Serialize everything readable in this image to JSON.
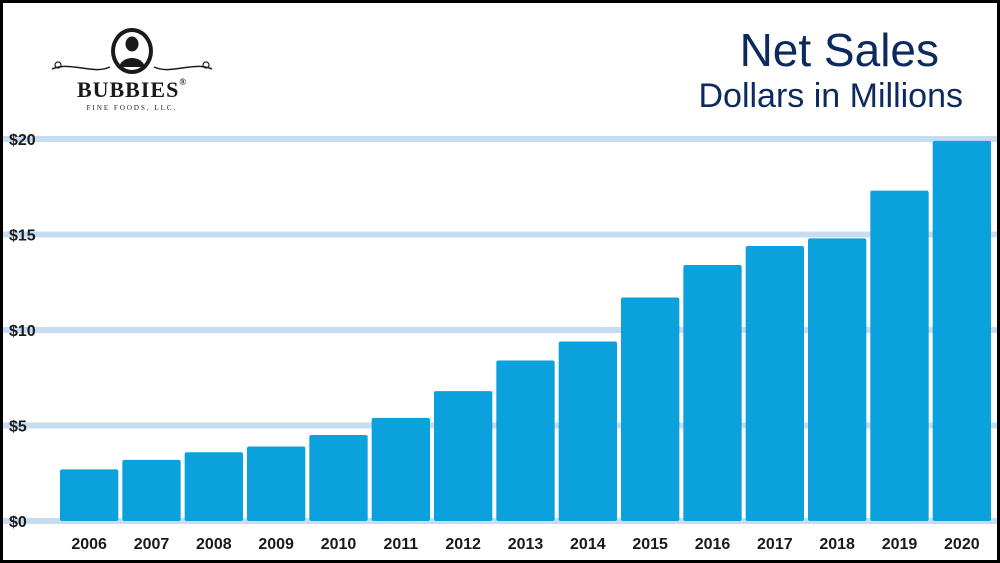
{
  "logo": {
    "wordmark": "BUBBIES",
    "registered": "®",
    "tagline": "FINE FOODS, LLC."
  },
  "colors": {
    "bar": "#0aa1dd",
    "gridline": "#c6dcf0",
    "title": "#0c2a5e",
    "axis_text": "#1a1a1a",
    "border": "#000000"
  },
  "chart_data": {
    "type": "bar",
    "title": "Net Sales",
    "subtitle": "Dollars in Millions",
    "xlabel": "",
    "ylabel": "",
    "categories": [
      "2006",
      "2007",
      "2008",
      "2009",
      "2010",
      "2011",
      "2012",
      "2013",
      "2014",
      "2015",
      "2016",
      "2017",
      "2018",
      "2019",
      "2020"
    ],
    "values": [
      2.7,
      3.2,
      3.6,
      3.9,
      4.5,
      5.4,
      6.8,
      8.4,
      9.4,
      11.7,
      13.4,
      14.4,
      14.8,
      17.3,
      19.9
    ],
    "y_ticks": [
      "$0",
      "$5",
      "$10",
      "$15",
      "$20"
    ],
    "y_tick_values": [
      0,
      5,
      10,
      15,
      20
    ],
    "ylim": [
      0,
      20
    ],
    "grid": true,
    "legend": "none"
  }
}
